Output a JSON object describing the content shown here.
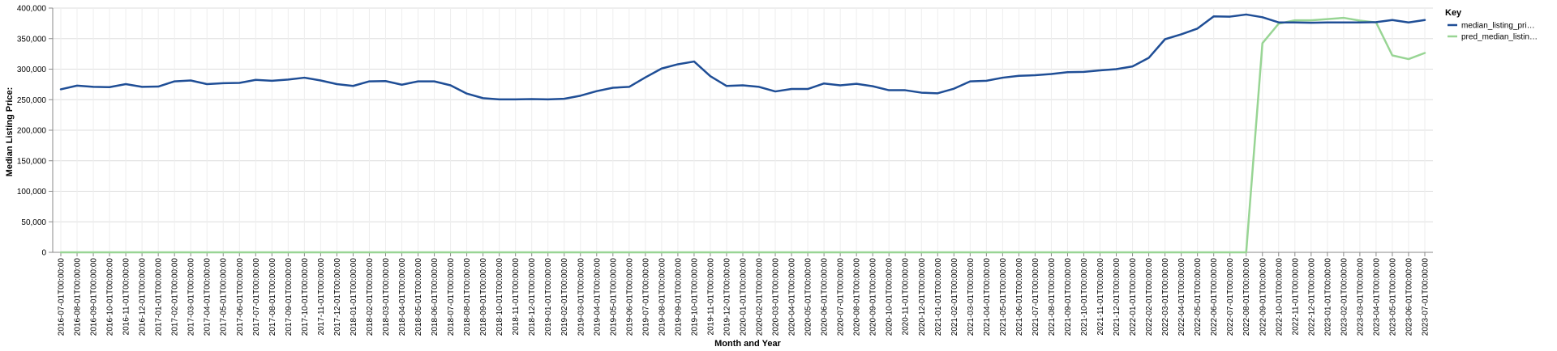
{
  "chart_data": {
    "type": "line",
    "xlabel": "Month and Year",
    "ylabel": "Median Listing Price:",
    "ylim": [
      0,
      400000
    ],
    "y_ticks": [
      0,
      50000,
      100000,
      150000,
      200000,
      250000,
      300000,
      350000,
      400000
    ],
    "y_tick_labels": [
      "0",
      "50,000",
      "100,000",
      "150,000",
      "200,000",
      "250,000",
      "300,000",
      "350,000",
      "400,000"
    ],
    "grid": true,
    "legend": {
      "title": "Key",
      "placement": "right",
      "entries": [
        "median_listing_pri…",
        "pred_median_listin…"
      ]
    },
    "x": [
      "2016-07-01T00:00:00",
      "2016-08-01T00:00:00",
      "2016-09-01T00:00:00",
      "2016-10-01T00:00:00",
      "2016-11-01T00:00:00",
      "2016-12-01T00:00:00",
      "2017-01-01T00:00:00",
      "2017-02-01T00:00:00",
      "2017-03-01T00:00:00",
      "2017-04-01T00:00:00",
      "2017-05-01T00:00:00",
      "2017-06-01T00:00:00",
      "2017-07-01T00:00:00",
      "2017-08-01T00:00:00",
      "2017-09-01T00:00:00",
      "2017-10-01T00:00:00",
      "2017-11-01T00:00:00",
      "2017-12-01T00:00:00",
      "2018-01-01T00:00:00",
      "2018-02-01T00:00:00",
      "2018-03-01T00:00:00",
      "2018-04-01T00:00:00",
      "2018-05-01T00:00:00",
      "2018-06-01T00:00:00",
      "2018-07-01T00:00:00",
      "2018-08-01T00:00:00",
      "2018-09-01T00:00:00",
      "2018-10-01T00:00:00",
      "2018-11-01T00:00:00",
      "2018-12-01T00:00:00",
      "2019-01-01T00:00:00",
      "2019-02-01T00:00:00",
      "2019-03-01T00:00:00",
      "2019-04-01T00:00:00",
      "2019-05-01T00:00:00",
      "2019-06-01T00:00:00",
      "2019-07-01T00:00:00",
      "2019-08-01T00:00:00",
      "2019-09-01T00:00:00",
      "2019-10-01T00:00:00",
      "2019-11-01T00:00:00",
      "2019-12-01T00:00:00",
      "2020-01-01T00:00:00",
      "2020-02-01T00:00:00",
      "2020-03-01T00:00:00",
      "2020-04-01T00:00:00",
      "2020-05-01T00:00:00",
      "2020-06-01T00:00:00",
      "2020-07-01T00:00:00",
      "2020-08-01T00:00:00",
      "2020-09-01T00:00:00",
      "2020-10-01T00:00:00",
      "2020-11-01T00:00:00",
      "2020-12-01T00:00:00",
      "2021-01-01T00:00:00",
      "2021-02-01T00:00:00",
      "2021-03-01T00:00:00",
      "2021-04-01T00:00:00",
      "2021-05-01T00:00:00",
      "2021-06-01T00:00:00",
      "2021-07-01T00:00:00",
      "2021-08-01T00:00:00",
      "2021-09-01T00:00:00",
      "2021-10-01T00:00:00",
      "2021-11-01T00:00:00",
      "2021-12-01T00:00:00",
      "2022-01-01T00:00:00",
      "2022-02-01T00:00:00",
      "2022-03-01T00:00:00",
      "2022-04-01T00:00:00",
      "2022-05-01T00:00:00",
      "2022-06-01T00:00:00",
      "2022-07-01T00:00:00",
      "2022-08-01T00:00:00",
      "2022-09-01T00:00:00",
      "2022-10-01T00:00:00",
      "2022-11-01T00:00:00",
      "2022-12-01T00:00:00",
      "2023-01-01T00:00:00",
      "2023-02-01T00:00:00",
      "2023-03-01T00:00:00",
      "2023-04-01T00:00:00",
      "2023-05-01T00:00:00",
      "2023-06-01T00:00:00",
      "2023-07-01T00:00:00"
    ],
    "series": [
      {
        "name": "median_listing_pri…",
        "color": "#1f4e96",
        "values": [
          267000,
          273000,
          271000,
          270500,
          275500,
          271000,
          271500,
          280000,
          281500,
          275500,
          277000,
          277500,
          282500,
          281000,
          283000,
          286000,
          281500,
          275500,
          272500,
          280000,
          280500,
          274500,
          280000,
          280000,
          273500,
          260000,
          252500,
          250500,
          250500,
          251000,
          250500,
          251500,
          256500,
          264000,
          269500,
          271000,
          286500,
          301000,
          308000,
          312500,
          288500,
          272500,
          273500,
          271000,
          263500,
          267500,
          267500,
          276500,
          273500,
          276000,
          272000,
          265500,
          265500,
          261500,
          260500,
          268000,
          280000,
          281000,
          286000,
          289000,
          290000,
          292000,
          295000,
          295500,
          298000,
          300000,
          304500,
          318500,
          349000,
          357000,
          366500,
          386500,
          386000,
          389500,
          385000,
          376500,
          376500,
          376000,
          376500,
          376500,
          376500,
          377000,
          380500,
          376500,
          380500
        ]
      },
      {
        "name": "pred_median_listin…",
        "color": "#98d594",
        "values": [
          0,
          0,
          0,
          0,
          0,
          0,
          0,
          0,
          0,
          0,
          0,
          0,
          0,
          0,
          0,
          0,
          0,
          0,
          0,
          0,
          0,
          0,
          0,
          0,
          0,
          0,
          0,
          0,
          0,
          0,
          0,
          0,
          0,
          0,
          0,
          0,
          0,
          0,
          0,
          0,
          0,
          0,
          0,
          0,
          0,
          0,
          0,
          0,
          0,
          0,
          0,
          0,
          0,
          0,
          0,
          0,
          0,
          0,
          0,
          0,
          0,
          0,
          0,
          0,
          0,
          0,
          0,
          0,
          0,
          0,
          0,
          0,
          0,
          0,
          342500,
          374500,
          380000,
          380000,
          382000,
          384000,
          379500,
          376500,
          322500,
          316500,
          326500
        ]
      }
    ]
  }
}
